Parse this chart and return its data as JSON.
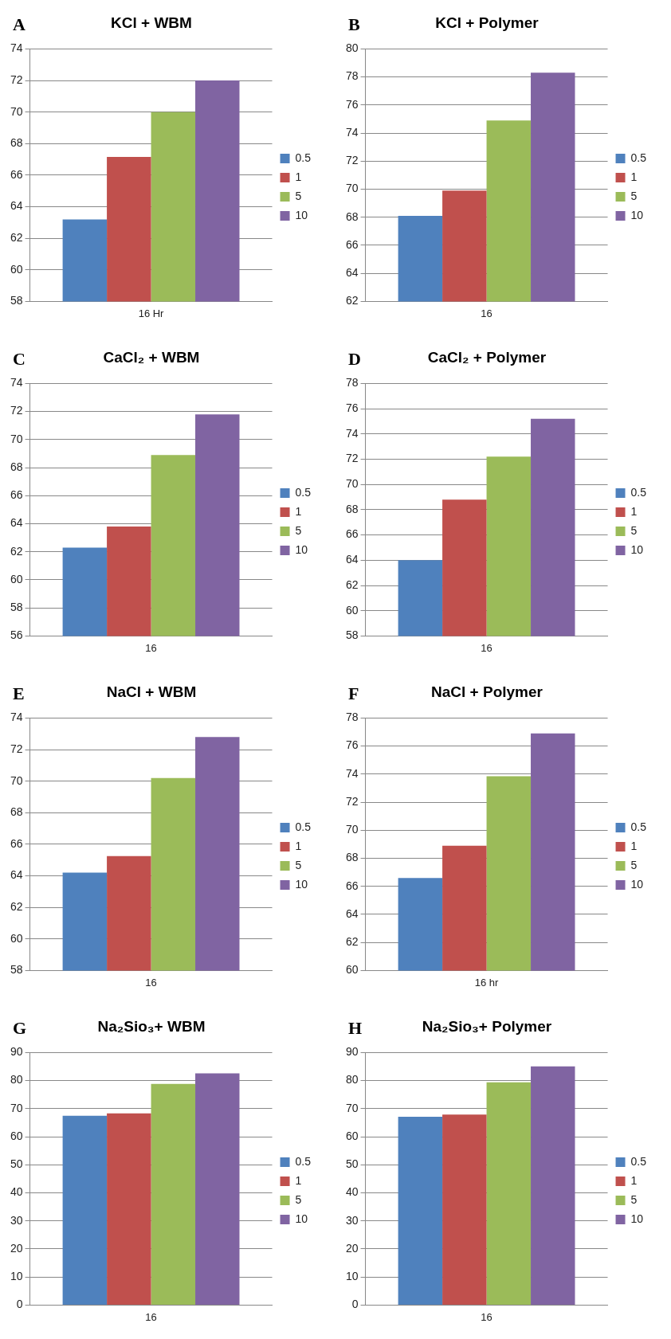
{
  "chart_data": [
    {
      "type": "bar",
      "title": "KCl + WBM",
      "annotations": [
        "A"
      ],
      "categories": [
        "16 Hr"
      ],
      "series": [
        {
          "name": "0.5",
          "color": "#4f81bd",
          "values": [
            63.2
          ]
        },
        {
          "name": "1",
          "color": "#c0504d",
          "values": [
            67.15
          ]
        },
        {
          "name": "5",
          "color": "#9bbb59",
          "values": [
            70.0
          ]
        },
        {
          "name": "10",
          "color": "#8064a2",
          "values": [
            72.0
          ]
        }
      ],
      "ylim": [
        58,
        74
      ],
      "yticks": [
        58,
        60,
        62,
        64,
        66,
        68,
        70,
        72,
        74
      ],
      "grid": "y",
      "legend": "right"
    },
    {
      "type": "bar",
      "title": "KCl + Polymer",
      "annotations": [
        "B"
      ],
      "categories": [
        "16"
      ],
      "series": [
        {
          "name": "0.5",
          "color": "#4f81bd",
          "values": [
            68.1
          ]
        },
        {
          "name": "1",
          "color": "#c0504d",
          "values": [
            69.9
          ]
        },
        {
          "name": "5",
          "color": "#9bbb59",
          "values": [
            74.9
          ]
        },
        {
          "name": "10",
          "color": "#8064a2",
          "values": [
            78.3
          ]
        }
      ],
      "ylim": [
        62,
        80
      ],
      "yticks": [
        62,
        64,
        66,
        68,
        70,
        72,
        74,
        76,
        78,
        80
      ],
      "grid": "y",
      "legend": "right"
    },
    {
      "type": "bar",
      "title": "CaCl₂ + WBM",
      "annotations": [
        "C"
      ],
      "categories": [
        "16"
      ],
      "series": [
        {
          "name": "0.5",
          "color": "#4f81bd",
          "values": [
            62.3
          ]
        },
        {
          "name": "1",
          "color": "#c0504d",
          "values": [
            63.8
          ]
        },
        {
          "name": "5",
          "color": "#9bbb59",
          "values": [
            68.9
          ]
        },
        {
          "name": "10",
          "color": "#8064a2",
          "values": [
            71.8
          ]
        }
      ],
      "ylim": [
        56,
        74
      ],
      "yticks": [
        56,
        58,
        60,
        62,
        64,
        66,
        68,
        70,
        72,
        74
      ],
      "grid": "y",
      "legend": "right"
    },
    {
      "type": "bar",
      "title": "CaCl₂ + Polymer",
      "annotations": [
        "D"
      ],
      "categories": [
        "16"
      ],
      "series": [
        {
          "name": "0.5",
          "color": "#4f81bd",
          "values": [
            64.0
          ]
        },
        {
          "name": "1",
          "color": "#c0504d",
          "values": [
            68.8
          ]
        },
        {
          "name": "5",
          "color": "#9bbb59",
          "values": [
            72.2
          ]
        },
        {
          "name": "10",
          "color": "#8064a2",
          "values": [
            75.2
          ]
        }
      ],
      "ylim": [
        58,
        78
      ],
      "yticks": [
        58,
        60,
        62,
        64,
        66,
        68,
        70,
        72,
        74,
        76,
        78
      ],
      "grid": "y",
      "legend": "right"
    },
    {
      "type": "bar",
      "title": "NaCl + WBM",
      "annotations": [
        "E"
      ],
      "categories": [
        "16"
      ],
      "series": [
        {
          "name": "0.5",
          "color": "#4f81bd",
          "values": [
            64.2
          ]
        },
        {
          "name": "1",
          "color": "#c0504d",
          "values": [
            65.25
          ]
        },
        {
          "name": "5",
          "color": "#9bbb59",
          "values": [
            70.2
          ]
        },
        {
          "name": "10",
          "color": "#8064a2",
          "values": [
            72.8
          ]
        }
      ],
      "ylim": [
        58,
        74
      ],
      "yticks": [
        58,
        60,
        62,
        64,
        66,
        68,
        70,
        72,
        74
      ],
      "grid": "y",
      "legend": "right"
    },
    {
      "type": "bar",
      "title": "NaCl + Polymer",
      "annotations": [
        "F"
      ],
      "categories": [
        "16 hr"
      ],
      "series": [
        {
          "name": "0.5",
          "color": "#4f81bd",
          "values": [
            66.6
          ]
        },
        {
          "name": "1",
          "color": "#c0504d",
          "values": [
            68.9
          ]
        },
        {
          "name": "5",
          "color": "#9bbb59",
          "values": [
            73.85
          ]
        },
        {
          "name": "10",
          "color": "#8064a2",
          "values": [
            76.9
          ]
        }
      ],
      "ylim": [
        60,
        78
      ],
      "yticks": [
        60,
        62,
        64,
        66,
        68,
        70,
        72,
        74,
        76,
        78
      ],
      "grid": "y",
      "legend": "right"
    },
    {
      "type": "bar",
      "title": "Na₂Sio₃+ WBM",
      "annotations": [
        "G"
      ],
      "categories": [
        "16"
      ],
      "series": [
        {
          "name": "0.5",
          "color": "#4f81bd",
          "values": [
            67.5
          ]
        },
        {
          "name": "1",
          "color": "#c0504d",
          "values": [
            68.3
          ]
        },
        {
          "name": "5",
          "color": "#9bbb59",
          "values": [
            78.8
          ]
        },
        {
          "name": "10",
          "color": "#8064a2",
          "values": [
            82.6
          ]
        }
      ],
      "ylim": [
        0,
        90
      ],
      "yticks": [
        0,
        10,
        20,
        30,
        40,
        50,
        60,
        70,
        80,
        90
      ],
      "grid": "y",
      "legend": "right"
    },
    {
      "type": "bar",
      "title": "Na₂Sio₃+ Polymer",
      "annotations": [
        "H"
      ],
      "categories": [
        "16"
      ],
      "series": [
        {
          "name": "0.5",
          "color": "#4f81bd",
          "values": [
            67.1
          ]
        },
        {
          "name": "1",
          "color": "#c0504d",
          "values": [
            67.9
          ]
        },
        {
          "name": "5",
          "color": "#9bbb59",
          "values": [
            79.4
          ]
        },
        {
          "name": "10",
          "color": "#8064a2",
          "values": [
            85.1
          ]
        }
      ],
      "ylim": [
        0,
        90
      ],
      "yticks": [
        0,
        10,
        20,
        30,
        40,
        50,
        60,
        70,
        80,
        90
      ],
      "grid": "y",
      "legend": "right"
    }
  ]
}
